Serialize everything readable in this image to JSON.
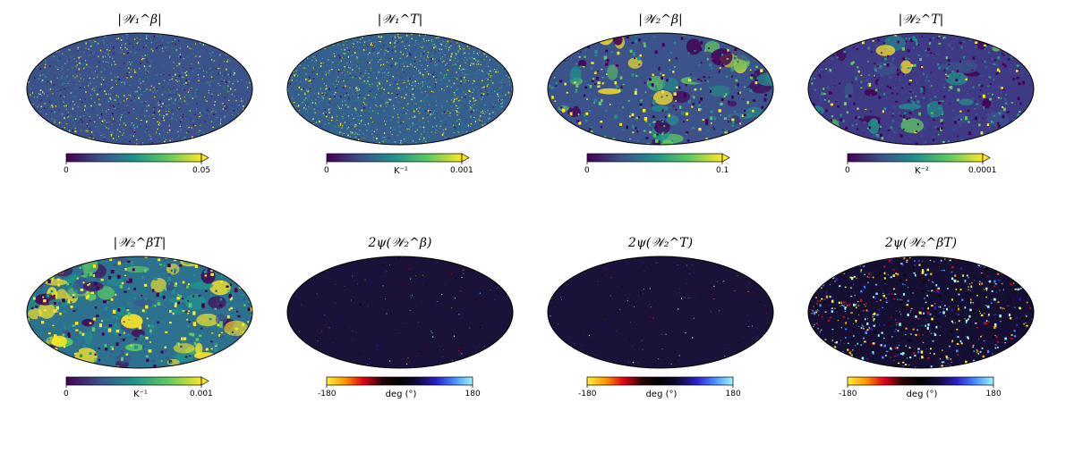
{
  "panels": [
    {
      "title": "|𝒲₁^β|",
      "tmin": "0",
      "tmax": "0.05",
      "unit": "",
      "cmap": "viridis",
      "extend": true,
      "style": "viridis-speckle"
    },
    {
      "title": "|𝒲₁^T|",
      "tmin": "0",
      "tmax": "0.001",
      "unit": "K⁻¹",
      "cmap": "viridis",
      "extend": true,
      "style": "viridis-bright"
    },
    {
      "title": "|𝒲₂^β|",
      "tmin": "0",
      "tmax": "0.1",
      "unit": "",
      "cmap": "viridis",
      "extend": true,
      "style": "viridis-blob"
    },
    {
      "title": "|𝒲₂^T|",
      "tmin": "0",
      "tmax": "0.0001",
      "unit": "K⁻²",
      "cmap": "viridis",
      "extend": true,
      "style": "viridis-dark"
    },
    {
      "title": "|𝒲₂^βT|",
      "tmin": "0",
      "tmax": "0.001",
      "unit": "K⁻¹",
      "cmap": "viridis",
      "extend": true,
      "style": "viridis-yellow"
    },
    {
      "title": "2ψ(𝒲₂^β)",
      "tmin": "-180",
      "tmax": "180",
      "unit": "deg (°)",
      "cmap": "phase",
      "extend": false,
      "style": "phase-dark"
    },
    {
      "title": "2ψ(𝒲₂^T)",
      "tmin": "-180",
      "tmax": "180",
      "unit": "deg (°)",
      "cmap": "phase",
      "extend": false,
      "style": "phase-dark"
    },
    {
      "title": "2ψ(𝒲₂^βT)",
      "tmin": "-180",
      "tmax": "180",
      "unit": "deg (°)",
      "cmap": "phase",
      "extend": false,
      "style": "phase-bright"
    }
  ],
  "colors": {
    "viridis": [
      "#440154",
      "#3b528b",
      "#21918c",
      "#5ec962",
      "#fde725"
    ],
    "phase": [
      "#ffef3b",
      "#ff9800",
      "#e3001a",
      "#2a0606",
      "#000000",
      "#120a3a",
      "#2a1fc8",
      "#4a8cff",
      "#9ef7ff"
    ]
  }
}
